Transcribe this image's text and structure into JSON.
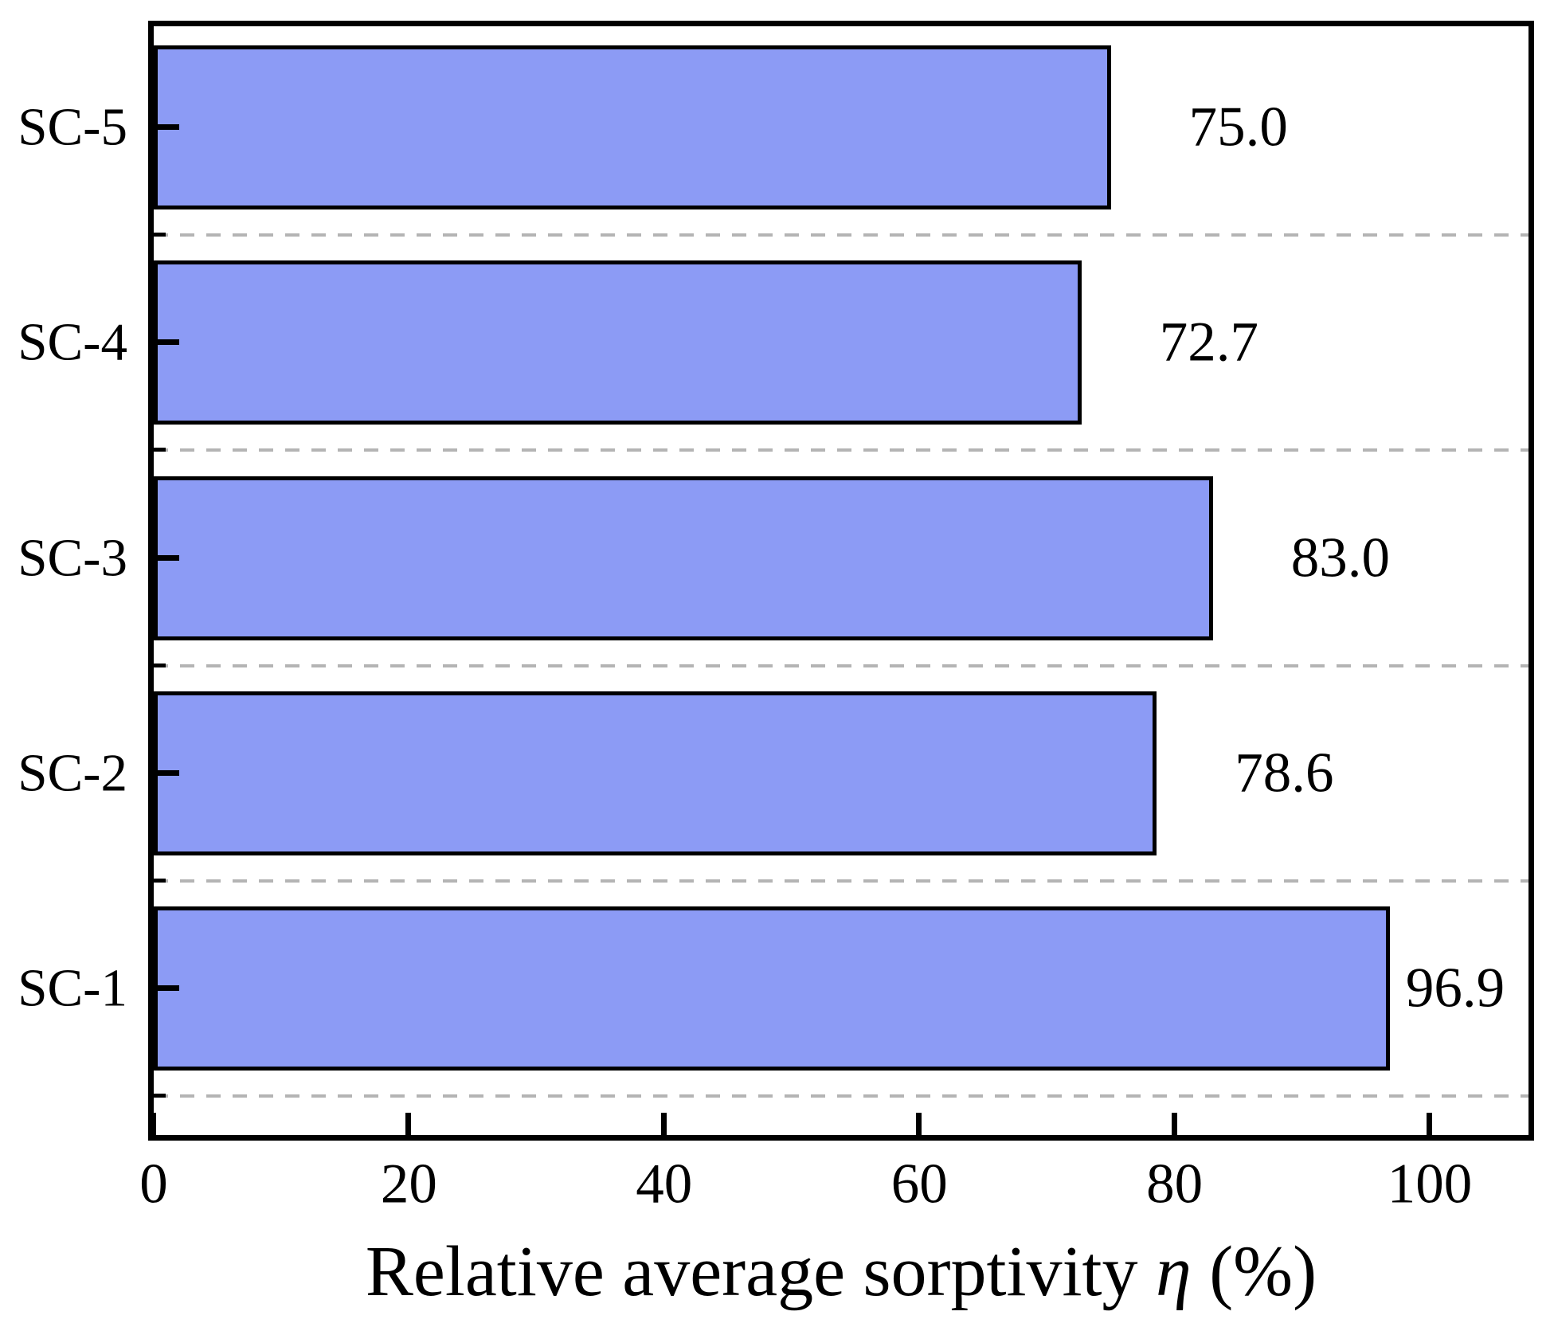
{
  "chart_data": {
    "type": "bar",
    "orientation": "horizontal",
    "xlabel_prefix": "Relative average sorptivity ",
    "xlabel_symbol": "η",
    "xlabel_suffix": " (%)",
    "categories": [
      "SC-5",
      "SC-4",
      "SC-3",
      "SC-2",
      "SC-1"
    ],
    "values": [
      75.0,
      72.7,
      83.0,
      78.6,
      96.9
    ],
    "value_labels": [
      "75.0",
      "72.7",
      "83.0",
      "78.6",
      "96.9"
    ],
    "x_ticks": [
      0,
      20,
      40,
      60,
      80,
      100
    ],
    "x_tick_labels": [
      "0",
      "20",
      "40",
      "60",
      "80",
      "100"
    ],
    "xlim": [
      0,
      107.7
    ],
    "grid": "dashed horizontal separator after each bar",
    "legend": "none",
    "bar_color": "#8C9BF5",
    "bar_border_color": "#000000",
    "grid_color": "#b4b4b4",
    "axis_color": "#000000",
    "background_color": "#ffffff"
  }
}
